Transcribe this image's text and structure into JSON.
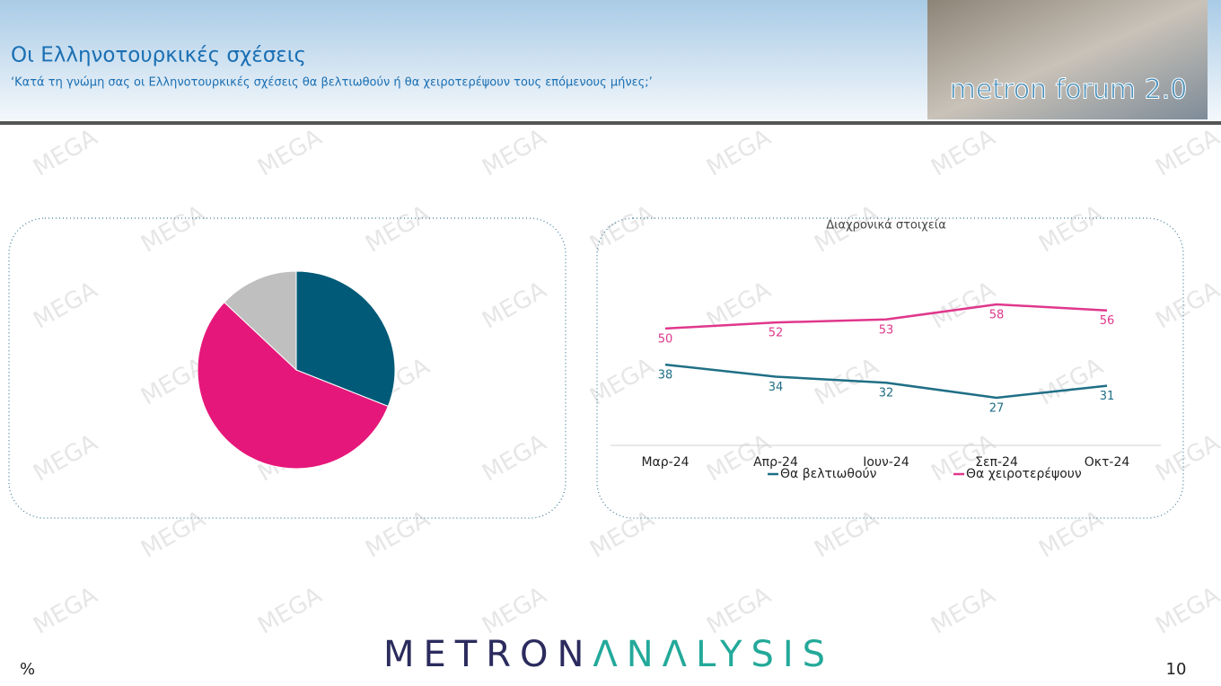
{
  "header": {
    "title": "Οι Ελληνοτουρκικές σχέσεις",
    "subtitle": "‘Κατά τη γνώμη σας οι Ελληνοτουρκικές σχέσεις θα βελτιωθούν ή θα χειροτερέψουν τους επόμενους μήνες;’",
    "logo": "metron forum 2.0"
  },
  "watermark": "MEGA",
  "chart_data": [
    {
      "type": "pie",
      "values": [
        31,
        56,
        13
      ],
      "colors": [
        "#005a78",
        "#e6177a",
        "#bfbfbf"
      ]
    },
    {
      "type": "line",
      "title": "Διαχρονικά στοιχεία",
      "categories": [
        "Μαρ-24",
        "Απρ-24",
        "Ιουν-24",
        "Σεπ-24",
        "Οκτ-24"
      ],
      "series": [
        {
          "name": "Θα βελτιωθούν",
          "color": "#1f6f86",
          "values": [
            38,
            34,
            32,
            27,
            31
          ]
        },
        {
          "name": "Θα χειροτερέψουν",
          "color": "#e0378c",
          "values": [
            50,
            52,
            53,
            58,
            56
          ]
        }
      ]
    }
  ],
  "footer": {
    "unit": "%",
    "brand": [
      "METRON",
      "ΛNΛLYSIS"
    ],
    "page": "10"
  }
}
